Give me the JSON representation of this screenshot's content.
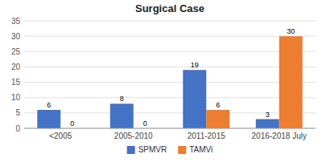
{
  "chart_data": {
    "type": "bar",
    "title": "Surgical Case",
    "categories": [
      "<2005",
      "2005-2010",
      "2011-2015",
      "2016-2018 July"
    ],
    "series": [
      {
        "name": "SPMVR",
        "color": "#4472C4",
        "values": [
          6,
          8,
          19,
          3
        ]
      },
      {
        "name": "TAMVi",
        "color": "#ED7D31",
        "values": [
          0,
          0,
          6,
          30
        ]
      }
    ],
    "ylim": [
      0,
      35
    ],
    "yticks": [
      0,
      5,
      10,
      15,
      20,
      25,
      30,
      35
    ],
    "grid": true,
    "legend": "bottom",
    "data_labels": true
  }
}
